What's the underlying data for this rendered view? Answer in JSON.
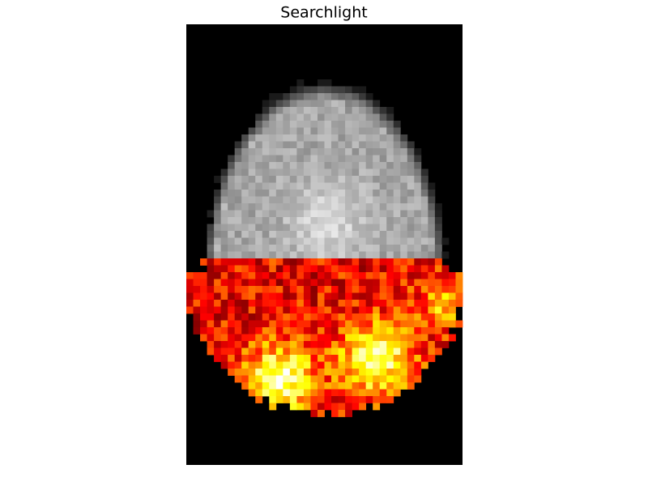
{
  "title": "Searchlight"
}
